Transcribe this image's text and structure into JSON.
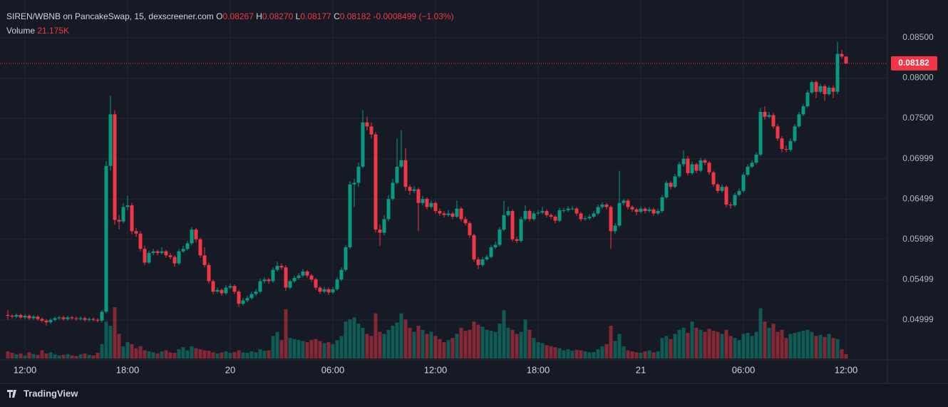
{
  "chart_data": {
    "type": "candlestick",
    "legend": {
      "symbol": "SIREN/WBNB on PancakeSwap, 15, dexscreener.com",
      "open_label": "O",
      "open": 0.08267,
      "high_label": "H",
      "high": {
        "value": 0.0827,
        "label": "0.08270"
      },
      "low_label": "L",
      "low": 0.08177,
      "close_label": "C",
      "close": 0.08182,
      "change": -0.0008499,
      "change_pct": {
        "value": -1.03,
        "label": "(−1.03%)"
      },
      "volume_label": "Volume",
      "volume": {
        "value": 21175,
        "label": "21.175K"
      }
    },
    "brand": "TradingView",
    "up_color": "#089981",
    "down_color": "#f23645",
    "grid": true,
    "ylim": [
      0.0452,
      0.0888
    ],
    "yticks": [
      {
        "value": 0.085,
        "label": "0.08500"
      },
      {
        "value": 0.08,
        "label": "0.08000"
      },
      {
        "value": 0.075,
        "label": "0.07500"
      },
      0.06999,
      0.06499,
      0.05999,
      0.05499,
      0.04999
    ],
    "xticks": [
      {
        "value": 4,
        "label": "12:00"
      },
      {
        "value": 28,
        "label": "18:00"
      },
      {
        "value": 52,
        "label": "20"
      },
      {
        "value": 76,
        "label": "06:00"
      },
      {
        "value": 100,
        "label": "12:00"
      },
      {
        "value": 124,
        "label": "18:00"
      },
      {
        "value": 148,
        "label": "21"
      },
      {
        "value": 172,
        "label": "06:00"
      },
      {
        "value": 196,
        "label": "12:00"
      }
    ],
    "candles": [
      [
        0.0506,
        0.0512,
        0.05,
        0.0505
      ],
      [
        0.0505,
        0.0507,
        0.0502,
        0.0504
      ],
      [
        0.0504,
        0.0508,
        0.0502,
        0.0506
      ],
      [
        0.0506,
        0.0508,
        0.0501,
        0.0503
      ],
      [
        0.0503,
        0.0507,
        0.0501,
        0.0505
      ],
      [
        0.0505,
        0.0507,
        0.05,
        0.0502
      ],
      [
        0.0502,
        0.0506,
        0.05,
        0.0504
      ],
      [
        0.0504,
        0.0506,
        0.0499,
        0.0501
      ],
      [
        0.0501,
        0.0503,
        0.0497,
        0.0499
      ],
      [
        0.0499,
        0.0501,
        0.0493,
        0.0497
      ],
      [
        0.0497,
        0.0502,
        0.0495,
        0.05
      ],
      [
        0.05,
        0.0504,
        0.0498,
        0.0502
      ],
      [
        0.0502,
        0.0505,
        0.05,
        0.0503
      ],
      [
        0.0503,
        0.0505,
        0.0499,
        0.0501
      ],
      [
        0.0501,
        0.0505,
        0.0499,
        0.0503
      ],
      [
        0.0503,
        0.0505,
        0.05,
        0.0502
      ],
      [
        0.0502,
        0.0504,
        0.0499,
        0.0501
      ],
      [
        0.0501,
        0.0504,
        0.0499,
        0.0502
      ],
      [
        0.0502,
        0.0504,
        0.0498,
        0.05
      ],
      [
        0.05,
        0.0503,
        0.0498,
        0.0501
      ],
      [
        0.0501,
        0.0503,
        0.0498,
        0.05
      ],
      [
        0.05,
        0.0502,
        0.0497,
        0.0499
      ],
      [
        0.0499,
        0.0512,
        0.0497,
        0.051
      ],
      [
        0.051,
        0.0697,
        0.0508,
        0.0691
      ],
      [
        0.0691,
        0.0778,
        0.0685,
        0.0755
      ],
      [
        0.0755,
        0.076,
        0.0618,
        0.0624
      ],
      [
        0.0624,
        0.063,
        0.0612,
        0.0622
      ],
      [
        0.0622,
        0.0645,
        0.062,
        0.064
      ],
      [
        0.064,
        0.0654,
        0.0636,
        0.0642
      ],
      [
        0.0642,
        0.0645,
        0.0606,
        0.061
      ],
      [
        0.061,
        0.0614,
        0.0603,
        0.0607
      ],
      [
        0.0607,
        0.061,
        0.0585,
        0.0588
      ],
      [
        0.0588,
        0.0592,
        0.0568,
        0.0571
      ],
      [
        0.0571,
        0.0586,
        0.0569,
        0.0583
      ],
      [
        0.0583,
        0.0588,
        0.058,
        0.0585
      ],
      [
        0.0585,
        0.0587,
        0.058,
        0.0583
      ],
      [
        0.0583,
        0.059,
        0.0581,
        0.0585
      ],
      [
        0.0585,
        0.0587,
        0.0577,
        0.058
      ],
      [
        0.058,
        0.0583,
        0.0575,
        0.0578
      ],
      [
        0.0578,
        0.058,
        0.0566,
        0.057
      ],
      [
        0.057,
        0.0588,
        0.0568,
        0.0585
      ],
      [
        0.0585,
        0.0592,
        0.0583,
        0.0588
      ],
      [
        0.0588,
        0.0598,
        0.0586,
        0.0595
      ],
      [
        0.0595,
        0.0615,
        0.0593,
        0.0612
      ],
      [
        0.0612,
        0.0614,
        0.0596,
        0.06
      ],
      [
        0.06,
        0.0602,
        0.0577,
        0.058
      ],
      [
        0.058,
        0.059,
        0.0565,
        0.0568
      ],
      [
        0.0568,
        0.0571,
        0.0545,
        0.0548
      ],
      [
        0.0548,
        0.055,
        0.0532,
        0.0535
      ],
      [
        0.0535,
        0.054,
        0.0533,
        0.0537
      ],
      [
        0.0537,
        0.0539,
        0.053,
        0.0533
      ],
      [
        0.0533,
        0.0543,
        0.0531,
        0.054
      ],
      [
        0.054,
        0.0545,
        0.0538,
        0.0542
      ],
      [
        0.0542,
        0.0544,
        0.0532,
        0.0535
      ],
      [
        0.0535,
        0.0537,
        0.0516,
        0.052
      ],
      [
        0.052,
        0.0527,
        0.0518,
        0.0524
      ],
      [
        0.0524,
        0.053,
        0.0522,
        0.0527
      ],
      [
        0.0527,
        0.0535,
        0.0525,
        0.0532
      ],
      [
        0.0532,
        0.0538,
        0.053,
        0.0535
      ],
      [
        0.0535,
        0.0551,
        0.0533,
        0.0548
      ],
      [
        0.0548,
        0.0553,
        0.0545,
        0.055
      ],
      [
        0.055,
        0.0552,
        0.0545,
        0.0548
      ],
      [
        0.0548,
        0.0565,
        0.0546,
        0.0562
      ],
      [
        0.0562,
        0.0572,
        0.056,
        0.0567
      ],
      [
        0.0567,
        0.057,
        0.0562,
        0.0565
      ],
      [
        0.0565,
        0.0568,
        0.0536,
        0.054
      ],
      [
        0.054,
        0.055,
        0.0538,
        0.0548
      ],
      [
        0.0548,
        0.0555,
        0.0546,
        0.0552
      ],
      [
        0.0552,
        0.0558,
        0.055,
        0.0555
      ],
      [
        0.0555,
        0.0563,
        0.0553,
        0.056
      ],
      [
        0.056,
        0.0562,
        0.0552,
        0.0555
      ],
      [
        0.0555,
        0.0557,
        0.0547,
        0.055
      ],
      [
        0.055,
        0.0552,
        0.0537,
        0.054
      ],
      [
        0.054,
        0.0542,
        0.0532,
        0.0535
      ],
      [
        0.0535,
        0.0541,
        0.0533,
        0.0538
      ],
      [
        0.0538,
        0.054,
        0.0531,
        0.0534
      ],
      [
        0.0534,
        0.0541,
        0.0532,
        0.0538
      ],
      [
        0.0538,
        0.0553,
        0.0536,
        0.055
      ],
      [
        0.055,
        0.0565,
        0.0548,
        0.0562
      ],
      [
        0.0562,
        0.0593,
        0.056,
        0.059
      ],
      [
        0.059,
        0.0672,
        0.0588,
        0.0668
      ],
      [
        0.0668,
        0.0675,
        0.064,
        0.067
      ],
      [
        0.067,
        0.0695,
        0.0665,
        0.069
      ],
      [
        0.069,
        0.076,
        0.0688,
        0.0745
      ],
      [
        0.0745,
        0.0752,
        0.0735,
        0.074
      ],
      [
        0.074,
        0.0745,
        0.0725,
        0.073
      ],
      [
        0.073,
        0.0733,
        0.0608,
        0.0612
      ],
      [
        0.0612,
        0.0618,
        0.0592,
        0.0608
      ],
      [
        0.0608,
        0.063,
        0.0605,
        0.0625
      ],
      [
        0.0625,
        0.0655,
        0.0622,
        0.065
      ],
      [
        0.065,
        0.0675,
        0.0648,
        0.067
      ],
      [
        0.067,
        0.0725,
        0.0668,
        0.069
      ],
      [
        0.069,
        0.0735,
        0.0688,
        0.0698
      ],
      [
        0.0698,
        0.0713,
        0.066,
        0.0665
      ],
      [
        0.0665,
        0.0668,
        0.0655,
        0.066
      ],
      [
        0.066,
        0.0666,
        0.0657,
        0.0662
      ],
      [
        0.0662,
        0.0664,
        0.061,
        0.0645
      ],
      [
        0.0645,
        0.0654,
        0.0642,
        0.065
      ],
      [
        0.065,
        0.0652,
        0.0637,
        0.064
      ],
      [
        0.064,
        0.0648,
        0.0638,
        0.0645
      ],
      [
        0.0645,
        0.0647,
        0.0632,
        0.0635
      ],
      [
        0.0635,
        0.0638,
        0.0629,
        0.0632
      ],
      [
        0.0632,
        0.0635,
        0.0627,
        0.063
      ],
      [
        0.063,
        0.0636,
        0.0628,
        0.0632
      ],
      [
        0.0632,
        0.0634,
        0.0625,
        0.0628
      ],
      [
        0.0628,
        0.0648,
        0.0626,
        0.0638
      ],
      [
        0.0638,
        0.064,
        0.0622,
        0.0625
      ],
      [
        0.0625,
        0.0628,
        0.0617,
        0.062
      ],
      [
        0.062,
        0.0622,
        0.0602,
        0.0605
      ],
      [
        0.0605,
        0.0607,
        0.0572,
        0.0575
      ],
      [
        0.0575,
        0.0578,
        0.0563,
        0.0568
      ],
      [
        0.0568,
        0.0578,
        0.0566,
        0.0575
      ],
      [
        0.0575,
        0.0581,
        0.0573,
        0.0578
      ],
      [
        0.0578,
        0.0593,
        0.0576,
        0.059
      ],
      [
        0.059,
        0.0597,
        0.0588,
        0.0593
      ],
      [
        0.0593,
        0.0615,
        0.0591,
        0.0612
      ],
      [
        0.0612,
        0.0648,
        0.061,
        0.063
      ],
      [
        0.063,
        0.064,
        0.0628,
        0.0635
      ],
      [
        0.0635,
        0.0637,
        0.0597,
        0.06
      ],
      [
        0.06,
        0.0603,
        0.0595,
        0.0598
      ],
      [
        0.0598,
        0.0628,
        0.0596,
        0.0625
      ],
      [
        0.0625,
        0.0642,
        0.0623,
        0.0635
      ],
      [
        0.0635,
        0.0637,
        0.0622,
        0.0625
      ],
      [
        0.0625,
        0.0635,
        0.0623,
        0.0632
      ],
      [
        0.0632,
        0.0636,
        0.063,
        0.0633
      ],
      [
        0.0633,
        0.064,
        0.0631,
        0.0635
      ],
      [
        0.0635,
        0.0637,
        0.0627,
        0.063
      ],
      [
        0.063,
        0.0632,
        0.0625,
        0.0628
      ],
      [
        0.0628,
        0.063,
        0.062,
        0.0623
      ],
      [
        0.0623,
        0.0639,
        0.0621,
        0.0636
      ],
      [
        0.0636,
        0.0639,
        0.0633,
        0.0636
      ],
      [
        0.0636,
        0.0641,
        0.0634,
        0.0638
      ],
      [
        0.0638,
        0.0641,
        0.0636,
        0.0638
      ],
      [
        0.0638,
        0.064,
        0.0629,
        0.0632
      ],
      [
        0.0632,
        0.0634,
        0.0622,
        0.0625
      ],
      [
        0.0625,
        0.0629,
        0.0623,
        0.0626
      ],
      [
        0.0626,
        0.0631,
        0.0624,
        0.0628
      ],
      [
        0.0628,
        0.0635,
        0.0626,
        0.0632
      ],
      [
        0.0632,
        0.0643,
        0.063,
        0.064
      ],
      [
        0.064,
        0.0646,
        0.0638,
        0.0643
      ],
      [
        0.0643,
        0.0645,
        0.0637,
        0.064
      ],
      [
        0.064,
        0.0642,
        0.0588,
        0.061
      ],
      [
        0.061,
        0.062,
        0.0607,
        0.0617
      ],
      [
        0.0617,
        0.0685,
        0.0615,
        0.0645
      ],
      [
        0.0645,
        0.065,
        0.0642,
        0.0648
      ],
      [
        0.0648,
        0.065,
        0.0637,
        0.064
      ],
      [
        0.064,
        0.0642,
        0.0634,
        0.0637
      ],
      [
        0.0637,
        0.0639,
        0.063,
        0.0634
      ],
      [
        0.0634,
        0.0641,
        0.0632,
        0.0638
      ],
      [
        0.0638,
        0.064,
        0.0632,
        0.0635
      ],
      [
        0.0635,
        0.064,
        0.0633,
        0.0637
      ],
      [
        0.0637,
        0.0639,
        0.0629,
        0.0632
      ],
      [
        0.0632,
        0.0638,
        0.063,
        0.0635
      ],
      [
        0.0635,
        0.0655,
        0.0633,
        0.0652
      ],
      [
        0.0652,
        0.0673,
        0.065,
        0.067
      ],
      [
        0.067,
        0.0672,
        0.0662,
        0.0665
      ],
      [
        0.0665,
        0.0681,
        0.0663,
        0.0678
      ],
      [
        0.0678,
        0.0696,
        0.0676,
        0.0693
      ],
      [
        0.0693,
        0.071,
        0.069,
        0.07
      ],
      [
        0.07,
        0.0703,
        0.0679,
        0.0682
      ],
      [
        0.0682,
        0.0696,
        0.068,
        0.0693
      ],
      [
        0.0693,
        0.0695,
        0.0682,
        0.0685
      ],
      [
        0.0685,
        0.0701,
        0.0683,
        0.0698
      ],
      [
        0.0698,
        0.07,
        0.0692,
        0.0695
      ],
      [
        0.0695,
        0.0697,
        0.068,
        0.0683
      ],
      [
        0.0683,
        0.0685,
        0.0665,
        0.0668
      ],
      [
        0.0668,
        0.067,
        0.0657,
        0.066
      ],
      [
        0.066,
        0.0668,
        0.0658,
        0.0665
      ],
      [
        0.0665,
        0.0667,
        0.064,
        0.0643
      ],
      [
        0.0643,
        0.0646,
        0.0638,
        0.0642
      ],
      [
        0.0642,
        0.0658,
        0.064,
        0.0655
      ],
      [
        0.0655,
        0.0663,
        0.0653,
        0.066
      ],
      [
        0.066,
        0.0683,
        0.0658,
        0.068
      ],
      [
        0.068,
        0.0693,
        0.0678,
        0.069
      ],
      [
        0.069,
        0.0698,
        0.0688,
        0.0695
      ],
      [
        0.0695,
        0.0708,
        0.0693,
        0.0705
      ],
      [
        0.0705,
        0.0763,
        0.0703,
        0.0758
      ],
      [
        0.0758,
        0.0765,
        0.0748,
        0.0752
      ],
      [
        0.0752,
        0.0758,
        0.075,
        0.0754
      ],
      [
        0.0754,
        0.0757,
        0.0737,
        0.074
      ],
      [
        0.074,
        0.0743,
        0.0722,
        0.0725
      ],
      [
        0.0725,
        0.0728,
        0.0708,
        0.0712
      ],
      [
        0.0712,
        0.0716,
        0.0708,
        0.0711
      ],
      [
        0.0711,
        0.0725,
        0.0709,
        0.0722
      ],
      [
        0.0722,
        0.0743,
        0.072,
        0.074
      ],
      [
        0.074,
        0.0758,
        0.0738,
        0.0755
      ],
      [
        0.0755,
        0.0768,
        0.0753,
        0.0765
      ],
      [
        0.0765,
        0.0785,
        0.0763,
        0.0782
      ],
      [
        0.0782,
        0.0797,
        0.078,
        0.0795
      ],
      [
        0.0795,
        0.0797,
        0.0775,
        0.0783
      ],
      [
        0.0783,
        0.0793,
        0.0781,
        0.079
      ],
      [
        0.079,
        0.0792,
        0.0772,
        0.078
      ],
      [
        0.078,
        0.0791,
        0.0778,
        0.0788
      ],
      [
        0.0788,
        0.0791,
        0.0775,
        0.0783
      ],
      [
        0.0783,
        0.0845,
        0.078,
        0.083
      ],
      [
        0.083,
        0.0835,
        0.0824,
        0.08267
      ],
      [
        0.08267,
        0.0827,
        0.08177,
        0.08182
      ]
    ],
    "volumes": [
      35000,
      28000,
      20000,
      25000,
      15000,
      30000,
      22000,
      18000,
      40000,
      25000,
      30000,
      20000,
      15000,
      18000,
      22000,
      15000,
      12000,
      20000,
      25000,
      18000,
      15000,
      28000,
      70000,
      180000,
      160000,
      250000,
      120000,
      60000,
      80000,
      70000,
      50000,
      60000,
      40000,
      35000,
      30000,
      25000,
      35000,
      40000,
      30000,
      28000,
      45000,
      55000,
      40000,
      60000,
      50000,
      45000,
      40000,
      38000,
      30000,
      25000,
      30000,
      35000,
      28000,
      32000,
      40000,
      30000,
      28000,
      35000,
      30000,
      45000,
      38000,
      40000,
      110000,
      130000,
      90000,
      240000,
      100000,
      95000,
      90000,
      85000,
      80000,
      90000,
      95000,
      85000,
      75000,
      80000,
      70000,
      90000,
      110000,
      180000,
      190000,
      200000,
      170000,
      150000,
      120000,
      110000,
      220000,
      130000,
      120000,
      140000,
      160000,
      175000,
      220000,
      190000,
      150000,
      130000,
      160000,
      140000,
      120000,
      130000,
      110000,
      95000,
      80000,
      90000,
      100000,
      120000,
      150000,
      135000,
      140000,
      180000,
      165000,
      155000,
      140000,
      135000,
      130000,
      170000,
      235000,
      150000,
      140000,
      120000,
      130000,
      190000,
      140000,
      100000,
      80000,
      75000,
      65000,
      60000,
      55000,
      50000,
      40000,
      45000,
      38000,
      42000,
      40000,
      35000,
      30000,
      32000,
      45000,
      60000,
      70000,
      160000,
      85000,
      120000,
      60000,
      40000,
      35000,
      30000,
      28000,
      35000,
      40000,
      30000,
      35000,
      100000,
      110000,
      95000,
      120000,
      140000,
      150000,
      125000,
      180000,
      150000,
      140000,
      130000,
      145000,
      135000,
      130000,
      120000,
      140000,
      110000,
      100000,
      90000,
      120000,
      125000,
      110000,
      130000,
      245000,
      180000,
      150000,
      170000,
      130000,
      140000,
      100000,
      120000,
      125000,
      130000,
      135000,
      140000,
      130000,
      110000,
      115000,
      105000,
      120000,
      100000,
      95000,
      45000,
      21175
    ]
  }
}
